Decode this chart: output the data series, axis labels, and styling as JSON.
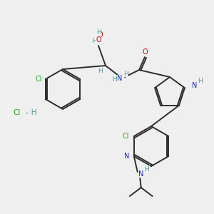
{
  "bg_color": "#efefef",
  "bond_color": "#2d2d2d",
  "atom_colors": {
    "N": "#2222cc",
    "O": "#cc0000",
    "Cl": "#22aa22",
    "H": "#4a9a9a",
    "C": "#2d2d2d"
  },
  "lw": 1.4,
  "fs": 7.0
}
